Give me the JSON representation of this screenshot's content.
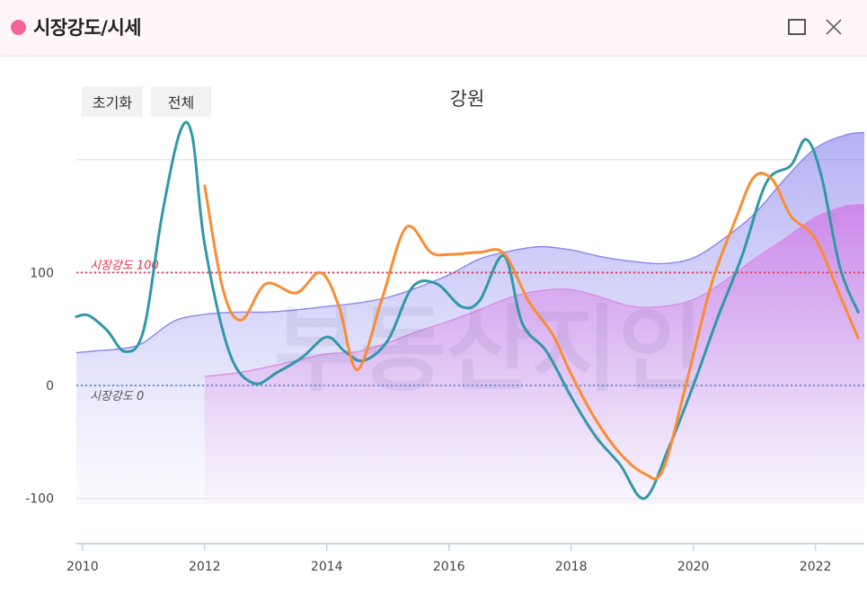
{
  "window": {
    "title": "시장강도/시세",
    "accent": "#f4639a",
    "icons": {
      "maximize": "maximize-icon",
      "close": "close-icon"
    }
  },
  "toolbar": {
    "reset_label": "초기화",
    "all_label": "전체"
  },
  "chart_data": {
    "type": "line",
    "title": "강원",
    "xlabel": "",
    "ylabel": "",
    "xlim": [
      2009.9,
      2022.8
    ],
    "ylim": [
      -140,
      230
    ],
    "x_ticks": [
      2010,
      2012,
      2014,
      2016,
      2018,
      2020,
      2022
    ],
    "y_ticks": [
      -100,
      0,
      100
    ],
    "grid": {
      "horizontal": true,
      "vertical": false
    },
    "legend": "none",
    "reference_lines": [
      {
        "y": 100,
        "label": "시장강도 100",
        "color": "#e8304a"
      },
      {
        "y": 0,
        "label": "시장강도 0",
        "color": "#5b8fd8"
      }
    ],
    "series": [
      {
        "kind": "area",
        "color": "#8c86ee",
        "x": [
          2009.9,
          2010.3,
          2010.7,
          2011.0,
          2011.5,
          2012.0,
          2012.5,
          2013.0,
          2013.5,
          2014.0,
          2014.5,
          2015.0,
          2015.5,
          2016.0,
          2016.5,
          2017.0,
          2017.5,
          2018.0,
          2018.5,
          2019.0,
          2019.5,
          2020.0,
          2020.5,
          2021.0,
          2021.5,
          2022.0,
          2022.5,
          2022.8
        ],
        "values": [
          29,
          31,
          33,
          38,
          57,
          63,
          65,
          65,
          67,
          70,
          73,
          78,
          87,
          98,
          112,
          119,
          123,
          120,
          114,
          110,
          108,
          113,
          130,
          152,
          183,
          210,
          222,
          224
        ]
      },
      {
        "kind": "area",
        "color": "#d98de6",
        "x": [
          2012.0,
          2012.5,
          2013.0,
          2013.5,
          2014.0,
          2014.5,
          2015.0,
          2015.5,
          2016.0,
          2016.5,
          2017.0,
          2017.5,
          2018.0,
          2018.5,
          2019.0,
          2019.5,
          2020.0,
          2020.5,
          2021.0,
          2021.5,
          2022.0,
          2022.5,
          2022.8
        ],
        "values": [
          8,
          11,
          16,
          22,
          28,
          30,
          38,
          48,
          57,
          67,
          78,
          84,
          85,
          78,
          70,
          70,
          76,
          92,
          112,
          130,
          149,
          159,
          160
        ]
      },
      {
        "kind": "line",
        "color": "#3098a8",
        "x": [
          2009.9,
          2010.1,
          2010.4,
          2010.7,
          2011.0,
          2011.3,
          2011.6,
          2011.8,
          2012.0,
          2012.4,
          2012.8,
          2013.2,
          2013.6,
          2014.0,
          2014.3,
          2014.6,
          2015.0,
          2015.4,
          2015.8,
          2016.2,
          2016.5,
          2016.9,
          2017.2,
          2017.6,
          2018.0,
          2018.4,
          2018.8,
          2019.2,
          2019.6,
          2020.0,
          2020.4,
          2020.8,
          2021.2,
          2021.6,
          2021.85,
          2022.1,
          2022.4,
          2022.7
        ],
        "values": [
          61,
          62,
          49,
          30,
          49,
          150,
          225,
          220,
          125,
          30,
          2,
          12,
          25,
          43,
          30,
          22,
          40,
          87,
          90,
          70,
          75,
          115,
          55,
          30,
          -10,
          -45,
          -70,
          -100,
          -55,
          0,
          60,
          115,
          180,
          195,
          218,
          185,
          105,
          65
        ]
      },
      {
        "kind": "line",
        "color": "#fa8c33",
        "x": [
          2012.0,
          2012.3,
          2012.6,
          2013.0,
          2013.5,
          2013.9,
          2014.2,
          2014.5,
          2014.9,
          2015.3,
          2015.7,
          2016.0,
          2016.5,
          2016.9,
          2017.3,
          2017.7,
          2018.0,
          2018.4,
          2018.8,
          2019.2,
          2019.5,
          2019.9,
          2020.3,
          2020.7,
          2021.0,
          2021.3,
          2021.6,
          2022.0,
          2022.4,
          2022.7
        ],
        "values": [
          177,
          85,
          58,
          90,
          82,
          100,
          70,
          14,
          76,
          140,
          118,
          116,
          118,
          117,
          75,
          45,
          10,
          -30,
          -60,
          -78,
          -75,
          5,
          90,
          148,
          185,
          182,
          150,
          130,
          80,
          42
        ]
      }
    ]
  }
}
